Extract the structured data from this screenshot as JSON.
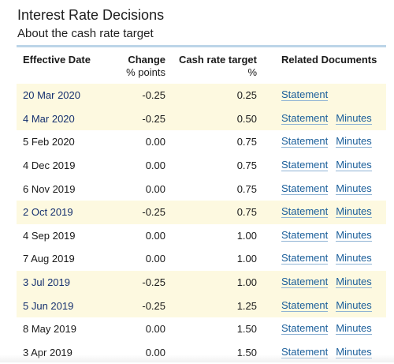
{
  "page": {
    "title": "Interest Rate Decisions",
    "subtitle": "About the cash rate target"
  },
  "table": {
    "headers": {
      "date": "Effective Date",
      "change_line1": "Change",
      "change_line2": "% points",
      "rate_line1": "Cash rate target",
      "rate_line2": "%",
      "docs": "Related Documents"
    },
    "rows": [
      {
        "date": "20 Mar 2020",
        "change": "-0.25",
        "rate": "0.25",
        "statement": "Statement",
        "minutes": ""
      },
      {
        "date": "4 Mar 2020",
        "change": "-0.25",
        "rate": "0.50",
        "statement": "Statement",
        "minutes": "Minutes"
      },
      {
        "date": "5 Feb 2020",
        "change": "0.00",
        "rate": "0.75",
        "statement": "Statement",
        "minutes": "Minutes"
      },
      {
        "date": "4 Dec 2019",
        "change": "0.00",
        "rate": "0.75",
        "statement": "Statement",
        "minutes": "Minutes"
      },
      {
        "date": "6 Nov 2019",
        "change": "0.00",
        "rate": "0.75",
        "statement": "Statement",
        "minutes": "Minutes"
      },
      {
        "date": "2 Oct 2019",
        "change": "-0.25",
        "rate": "0.75",
        "statement": "Statement",
        "minutes": "Minutes"
      },
      {
        "date": "4 Sep 2019",
        "change": "0.00",
        "rate": "1.00",
        "statement": "Statement",
        "minutes": "Minutes"
      },
      {
        "date": "7 Aug 2019",
        "change": "0.00",
        "rate": "1.00",
        "statement": "Statement",
        "minutes": "Minutes"
      },
      {
        "date": "3 Jul 2019",
        "change": "-0.25",
        "rate": "1.00",
        "statement": "Statement",
        "minutes": "Minutes"
      },
      {
        "date": "5 Jun 2019",
        "change": "-0.25",
        "rate": "1.25",
        "statement": "Statement",
        "minutes": "Minutes"
      },
      {
        "date": "8 May 2019",
        "change": "0.00",
        "rate": "1.50",
        "statement": "Statement",
        "minutes": "Minutes"
      },
      {
        "date": "3 Apr 2019",
        "change": "0.00",
        "rate": "1.50",
        "statement": "Statement",
        "minutes": "Minutes"
      }
    ]
  },
  "colors": {
    "highlight_row": "#fdf9e0",
    "link": "#1a5e9a",
    "header_rule": "#bcd5e8"
  }
}
